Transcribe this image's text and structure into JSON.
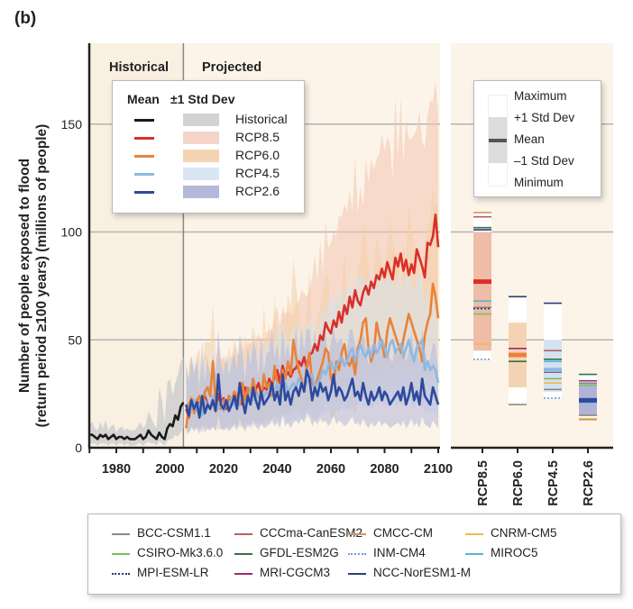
{
  "panel_label": "(b)",
  "chart_data": {
    "type": "line",
    "title": "",
    "ylabel": "Number of people exposed to flood (return period ≥100 years) (millions of people)",
    "ylabel_line1": "Number of people exposed to flood",
    "ylabel_line2": "(return period ≥100 years) (millions of people)",
    "xlabel": "",
    "xlim": [
      1970,
      2100
    ],
    "ylim": [
      0,
      165
    ],
    "x_ticks": [
      1980,
      2000,
      2020,
      2040,
      2060,
      2080,
      2100
    ],
    "y_ticks": [
      0,
      50,
      100,
      150
    ],
    "grid": "horizontal",
    "period_labels": {
      "historical": "Historical",
      "projected": "Projected",
      "split_year": 2005
    },
    "colors": {
      "background": "#fcf4e8",
      "historical": "#1a1a1a",
      "rcp85": "#d9302a",
      "rcp60": "#e8833a",
      "rcp45": "#8db9e3",
      "rcp26": "#2e4a9e",
      "band_historical": "#d0d0d0",
      "band_rcp85": "#f2c5b0",
      "band_rcp60": "#f4cfa8",
      "band_rcp45": "#d6e3f1",
      "band_rcp26": "#b3b6d8"
    },
    "legend": {
      "header_mean": "Mean",
      "header_std": "±1 Std Dev",
      "entries": [
        "Historical",
        "RCP8.5",
        "RCP6.0",
        "RCP4.5",
        "RCP2.6"
      ]
    },
    "series": [
      {
        "name": "Historical",
        "x_start": 1970,
        "x_end": 2005,
        "values": [
          6,
          6,
          5,
          4,
          6,
          5,
          6,
          4,
          5,
          6,
          4,
          5,
          5,
          4,
          5,
          4,
          4,
          4,
          5,
          6,
          4,
          5,
          8,
          6,
          5,
          4,
          7,
          5,
          4,
          9,
          11,
          10,
          15,
          13,
          19,
          21
        ],
        "band": [
          [
            2,
            11
          ],
          [
            2,
            12
          ],
          [
            2,
            9
          ],
          [
            1,
            8
          ],
          [
            2,
            12
          ],
          [
            2,
            9
          ],
          [
            2,
            13
          ],
          [
            1,
            8
          ],
          [
            2,
            10
          ],
          [
            2,
            11
          ],
          [
            1,
            7
          ],
          [
            2,
            9
          ],
          [
            2,
            10
          ],
          [
            1,
            8
          ],
          [
            2,
            9
          ],
          [
            1,
            8
          ],
          [
            1,
            8
          ],
          [
            1,
            8
          ],
          [
            2,
            10
          ],
          [
            2,
            12
          ],
          [
            1,
            9
          ],
          [
            2,
            11
          ],
          [
            3,
            17
          ],
          [
            2,
            14
          ],
          [
            2,
            11
          ],
          [
            1,
            9
          ],
          [
            3,
            28
          ],
          [
            2,
            22
          ],
          [
            1,
            12
          ],
          [
            3,
            30
          ],
          [
            4,
            32
          ],
          [
            4,
            24
          ],
          [
            6,
            30
          ],
          [
            5,
            34
          ],
          [
            7,
            40
          ],
          [
            9,
            42
          ]
        ]
      },
      {
        "name": "RCP8.5",
        "x_start": 2006,
        "x_end": 2100,
        "values": [
          18,
          14,
          20,
          17,
          22,
          19,
          16,
          24,
          20,
          18,
          22,
          17,
          25,
          20,
          23,
          18,
          24,
          21,
          26,
          22,
          23,
          20,
          28,
          24,
          26,
          22,
          27,
          30,
          25,
          28,
          27,
          32,
          29,
          33,
          36,
          30,
          38,
          33,
          35,
          33,
          36,
          37,
          40,
          38,
          42,
          37,
          43,
          44,
          48,
          45,
          52,
          50,
          58,
          55,
          53,
          59,
          56,
          63,
          58,
          66,
          62,
          70,
          65,
          73,
          68,
          66,
          72,
          75,
          71,
          77,
          74,
          80,
          78,
          83,
          79,
          86,
          82,
          78,
          88,
          84,
          90,
          82,
          87,
          80,
          85,
          81,
          92,
          88,
          84,
          79,
          95,
          94,
          98,
          108,
          93
        ],
        "band_low": 6,
        "band_high_max": 170
      },
      {
        "name": "RCP6.0",
        "x_start": 2006,
        "x_end": 2100,
        "values": [
          9,
          20,
          23,
          16,
          22,
          24,
          18,
          26,
          28,
          24,
          40,
          22,
          20,
          18,
          22,
          20,
          24,
          22,
          26,
          24,
          20,
          30,
          22,
          28,
          24,
          32,
          26,
          24,
          22,
          34,
          28,
          30,
          24,
          38,
          30,
          26,
          36,
          32,
          40,
          34,
          50,
          42,
          36,
          32,
          26,
          38,
          44,
          30,
          28,
          32,
          36,
          40,
          46,
          44,
          32,
          30,
          40,
          36,
          44,
          48,
          40,
          38,
          42,
          34,
          46,
          50,
          58,
          60,
          46,
          40,
          44,
          58,
          52,
          48,
          42,
          54,
          60,
          56,
          52,
          48,
          44,
          50,
          56,
          62,
          58,
          54,
          50,
          46,
          40,
          52,
          58,
          62,
          76,
          70,
          60
        ],
        "band_low": 5,
        "band_high_max": 120
      },
      {
        "name": "RCP4.5",
        "x_start": 2006,
        "x_end": 2100,
        "values": [
          20,
          16,
          18,
          22,
          17,
          20,
          15,
          22,
          19,
          18,
          24,
          20,
          18,
          22,
          17,
          21,
          19,
          23,
          20,
          18,
          24,
          22,
          20,
          21,
          26,
          22,
          24,
          25,
          22,
          24,
          26,
          24,
          28,
          25,
          30,
          27,
          32,
          30,
          26,
          28,
          30,
          28,
          32,
          30,
          28,
          30,
          32,
          34,
          28,
          30,
          32,
          36,
          34,
          38,
          40,
          36,
          38,
          40,
          42,
          38,
          40,
          44,
          46,
          40,
          44,
          48,
          44,
          42,
          46,
          42,
          48,
          44,
          46,
          50,
          46,
          42,
          48,
          50,
          44,
          46,
          48,
          42,
          46,
          50,
          44,
          40,
          46,
          48,
          50,
          36,
          40,
          36,
          38,
          36,
          30
        ],
        "band_low": 4,
        "band_high_max": 80
      },
      {
        "name": "RCP2.6",
        "x_start": 2006,
        "x_end": 2100,
        "values": [
          20,
          15,
          22,
          18,
          21,
          14,
          24,
          16,
          20,
          18,
          22,
          17,
          34,
          20,
          18,
          22,
          17,
          20,
          24,
          18,
          30,
          22,
          16,
          24,
          20,
          28,
          22,
          18,
          26,
          20,
          22,
          24,
          30,
          22,
          26,
          20,
          34,
          22,
          26,
          20,
          26,
          28,
          24,
          30,
          26,
          36,
          32,
          22,
          28,
          24,
          30,
          26,
          28,
          22,
          26,
          34,
          24,
          28,
          26,
          22,
          24,
          28,
          32,
          24,
          26,
          22,
          30,
          24,
          20,
          26,
          22,
          24,
          28,
          22,
          26,
          24,
          20,
          22,
          24,
          26,
          22,
          28,
          20,
          24,
          30,
          22,
          26,
          20,
          32,
          24,
          22,
          20,
          28,
          24,
          20
        ],
        "band_low": 3,
        "band_high_max": 55
      }
    ],
    "boxplots": {
      "categories": [
        "RCP8.5",
        "RCP6.0",
        "RCP4.5",
        "RCP2.6"
      ],
      "stats": [
        {
          "min": 41,
          "sd_low": 45,
          "mean": 77,
          "sd_high": 100,
          "max": 109,
          "fill": "#efbca8",
          "mean_color": "#d9302a"
        },
        {
          "min": 20,
          "sd_low": 28,
          "mean": 43,
          "sd_high": 58,
          "max": 70,
          "fill": "#f4d3b5",
          "mean_color": "#e8833a"
        },
        {
          "min": 23,
          "sd_low": 26,
          "mean": 36,
          "sd_high": 50,
          "max": 67,
          "fill": "#d3e2f1",
          "mean_color": "#8db9e3"
        },
        {
          "min": 13,
          "sd_low": 15,
          "mean": 22,
          "sd_high": 30,
          "max": 34,
          "fill": "#b1b3d6",
          "mean_color": "#2e4a9e"
        }
      ],
      "model_marks": [
        [
          {
            "model": "CMCC-CM",
            "v": 109
          },
          {
            "model": "CCCma-CanESM2",
            "v": 107
          },
          {
            "model": "GFDL-ESM2G",
            "v": 102
          },
          {
            "model": "NCC-NorESM1-M",
            "v": 101
          },
          {
            "model": "MIROC5",
            "v": 68
          },
          {
            "model": "BCC-CSM1.1",
            "v": 65
          },
          {
            "model": "MPI-ESM-LR",
            "v": 64.5
          },
          {
            "model": "CSIRO-Mk3.6.0",
            "v": 62
          },
          {
            "model": "CNRM-CM5",
            "v": 48
          },
          {
            "model": "INM-CM4",
            "v": 41
          }
        ],
        [
          {
            "model": "NCC-NorESM1-M",
            "v": 70
          },
          {
            "model": "MRI-CGCM3",
            "v": 46
          },
          {
            "model": "GFDL-ESM2G",
            "v": 40
          },
          {
            "model": "BCC-CSM1.1",
            "v": 20
          }
        ],
        [
          {
            "model": "NCC-NorESM1-M",
            "v": 67
          },
          {
            "model": "CCCma-CanESM2",
            "v": 45
          },
          {
            "model": "GFDL-ESM2G",
            "v": 41
          },
          {
            "model": "MIROC5",
            "v": 40
          },
          {
            "model": "MPI-ESM-LR",
            "v": 35
          },
          {
            "model": "MRI-CGCM3",
            "v": 35
          },
          {
            "model": "CSIRO-Mk3.6.0",
            "v": 32
          },
          {
            "model": "CNRM-CM5",
            "v": 30
          },
          {
            "model": "BCC-CSM1.1",
            "v": 27
          },
          {
            "model": "INM-CM4",
            "v": 23
          }
        ],
        [
          {
            "model": "GFDL-ESM2G",
            "v": 34
          },
          {
            "model": "MRI-CGCM3",
            "v": 31
          },
          {
            "model": "BCC-CSM1.1",
            "v": 30
          },
          {
            "model": "CSIRO-Mk3.6.0",
            "v": 29
          },
          {
            "model": "MIROC5",
            "v": 21
          },
          {
            "model": "BCC-CSM1.1",
            "v": 15
          },
          {
            "model": "CNRM-CM5",
            "v": 13.5
          },
          {
            "model": "CMCC-CM",
            "v": 13
          }
        ]
      ]
    }
  },
  "box_legend": {
    "items": [
      "Maximum",
      "+1 Std Dev",
      "Mean",
      "–1 Std Dev",
      "Minimum"
    ]
  },
  "model_legend": [
    {
      "name": "BCC-CSM1.1",
      "color": "#8a8a8a",
      "style": "solid"
    },
    {
      "name": "CCCma-CanESM2",
      "color": "#b5615a",
      "style": "solid"
    },
    {
      "name": "CMCC-CM",
      "color": "#c9996a",
      "style": "solid"
    },
    {
      "name": "CNRM-CM5",
      "color": "#f2b94e",
      "style": "solid"
    },
    {
      "name": "CSIRO-Mk3.6.0",
      "color": "#7cbf5a",
      "style": "solid"
    },
    {
      "name": "GFDL-ESM2G",
      "color": "#3c6e46",
      "style": "solid"
    },
    {
      "name": "INM-CM4",
      "color": "#6f9fdc",
      "style": "dotted"
    },
    {
      "name": "MIROC5",
      "color": "#4fb6dd",
      "style": "solid"
    },
    {
      "name": "MPI-ESM-LR",
      "color": "#2a3880",
      "style": "dotted"
    },
    {
      "name": "MRI-CGCM3",
      "color": "#9a2a70",
      "style": "solid"
    },
    {
      "name": "NCC-NorESM1-M",
      "color": "#2a3d7a",
      "style": "solid"
    }
  ]
}
